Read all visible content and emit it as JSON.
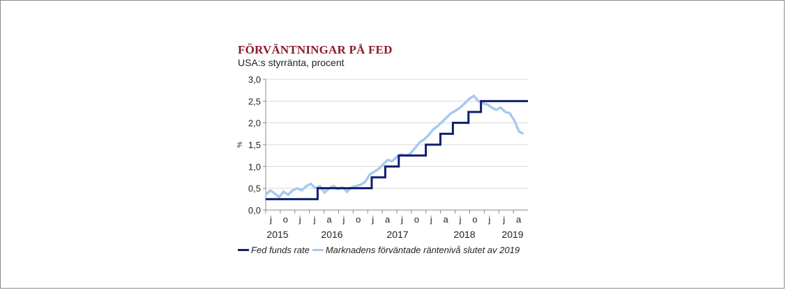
{
  "chart_data": {
    "type": "line",
    "title": "FÖRVÄNTNINGAR PÅ FED",
    "subtitle": "USA:s styrränta, procent",
    "ylabel": "%",
    "ylim": [
      0,
      3
    ],
    "yticks": [
      "0,0",
      "0,5",
      "1,0",
      "1,5",
      "2,0",
      "2,5",
      "3,0"
    ],
    "xlim": [
      "2015-01-01",
      "2019-10-31"
    ],
    "month_ticks": [
      {
        "label": "j",
        "date": "2015-01-01"
      },
      {
        "label": "o",
        "date": "2015-10-01"
      },
      {
        "label": "j",
        "date": "2015-07-01"
      },
      {
        "label": "j",
        "date": "2016-01-01"
      },
      {
        "label": "a",
        "date": "2016-04-01"
      },
      {
        "label": "j",
        "date": "2016-07-01"
      },
      {
        "label": "o",
        "date": "2016-10-01"
      },
      {
        "label": "j",
        "date": "2017-01-01"
      },
      {
        "label": "a",
        "date": "2017-04-01"
      },
      {
        "label": "j",
        "date": "2017-07-01"
      },
      {
        "label": "o",
        "date": "2017-10-01"
      },
      {
        "label": "j",
        "date": "2018-01-01"
      },
      {
        "label": "a",
        "date": "2018-04-01"
      },
      {
        "label": "j",
        "date": "2018-07-01"
      },
      {
        "label": "o",
        "date": "2018-10-01"
      },
      {
        "label": "j",
        "date": "2019-01-01"
      },
      {
        "label": "j",
        "date": "2019-04-01"
      },
      {
        "label": "a",
        "date": "2019-07-01"
      }
    ],
    "year_labels": [
      {
        "label": "2015",
        "date": "2015-08-15"
      },
      {
        "label": "2016",
        "date": "2016-05-01"
      },
      {
        "label": "2017",
        "date": "2017-05-15"
      },
      {
        "label": "2018",
        "date": "2018-05-15"
      },
      {
        "label": "2019",
        "date": "2019-05-15"
      }
    ],
    "series": [
      {
        "name": "Fed funds rate",
        "color": "#0d1f6b",
        "step": true,
        "points": [
          [
            "2015-01-01",
            0.25
          ],
          [
            "2015-12-16",
            0.5
          ],
          [
            "2016-12-14",
            0.75
          ],
          [
            "2017-03-15",
            1.0
          ],
          [
            "2017-06-14",
            1.25
          ],
          [
            "2017-12-13",
            1.5
          ],
          [
            "2018-03-21",
            1.75
          ],
          [
            "2018-06-13",
            2.0
          ],
          [
            "2018-09-26",
            2.25
          ],
          [
            "2018-12-19",
            2.5
          ],
          [
            "2019-10-31",
            2.5
          ]
        ]
      },
      {
        "name": "Marknadens förväntade räntenivå slutet av 2019",
        "color": "#a8c8f0",
        "step": false,
        "points": [
          [
            "2015-01-01",
            0.35
          ],
          [
            "2015-02-01",
            0.45
          ],
          [
            "2015-03-01",
            0.38
          ],
          [
            "2015-04-01",
            0.3
          ],
          [
            "2015-05-01",
            0.42
          ],
          [
            "2015-06-01",
            0.35
          ],
          [
            "2015-07-01",
            0.45
          ],
          [
            "2015-08-01",
            0.5
          ],
          [
            "2015-09-01",
            0.45
          ],
          [
            "2015-10-01",
            0.55
          ],
          [
            "2015-11-01",
            0.6
          ],
          [
            "2015-12-01",
            0.5
          ],
          [
            "2016-01-01",
            0.55
          ],
          [
            "2016-02-01",
            0.4
          ],
          [
            "2016-03-01",
            0.5
          ],
          [
            "2016-04-01",
            0.55
          ],
          [
            "2016-05-01",
            0.48
          ],
          [
            "2016-06-01",
            0.52
          ],
          [
            "2016-07-01",
            0.42
          ],
          [
            "2016-08-01",
            0.52
          ],
          [
            "2016-09-01",
            0.55
          ],
          [
            "2016-10-01",
            0.58
          ],
          [
            "2016-11-01",
            0.65
          ],
          [
            "2016-12-01",
            0.82
          ],
          [
            "2017-01-01",
            0.88
          ],
          [
            "2017-02-01",
            0.95
          ],
          [
            "2017-03-01",
            1.05
          ],
          [
            "2017-04-01",
            1.15
          ],
          [
            "2017-05-01",
            1.12
          ],
          [
            "2017-06-01",
            1.22
          ],
          [
            "2017-07-01",
            1.28
          ],
          [
            "2017-08-01",
            1.25
          ],
          [
            "2017-09-01",
            1.3
          ],
          [
            "2017-10-01",
            1.42
          ],
          [
            "2017-11-01",
            1.55
          ],
          [
            "2017-12-01",
            1.62
          ],
          [
            "2018-01-01",
            1.72
          ],
          [
            "2018-02-01",
            1.85
          ],
          [
            "2018-03-01",
            1.92
          ],
          [
            "2018-04-01",
            2.02
          ],
          [
            "2018-05-01",
            2.12
          ],
          [
            "2018-06-01",
            2.22
          ],
          [
            "2018-07-01",
            2.28
          ],
          [
            "2018-08-01",
            2.35
          ],
          [
            "2018-09-01",
            2.45
          ],
          [
            "2018-10-01",
            2.55
          ],
          [
            "2018-11-01",
            2.62
          ],
          [
            "2018-12-01",
            2.5
          ],
          [
            "2019-01-01",
            2.45
          ],
          [
            "2019-02-01",
            2.42
          ],
          [
            "2019-03-01",
            2.35
          ],
          [
            "2019-04-01",
            2.3
          ],
          [
            "2019-05-01",
            2.35
          ],
          [
            "2019-06-01",
            2.25
          ],
          [
            "2019-07-01",
            2.22
          ],
          [
            "2019-08-01",
            2.05
          ],
          [
            "2019-09-01",
            1.8
          ],
          [
            "2019-10-01",
            1.75
          ]
        ]
      }
    ]
  }
}
